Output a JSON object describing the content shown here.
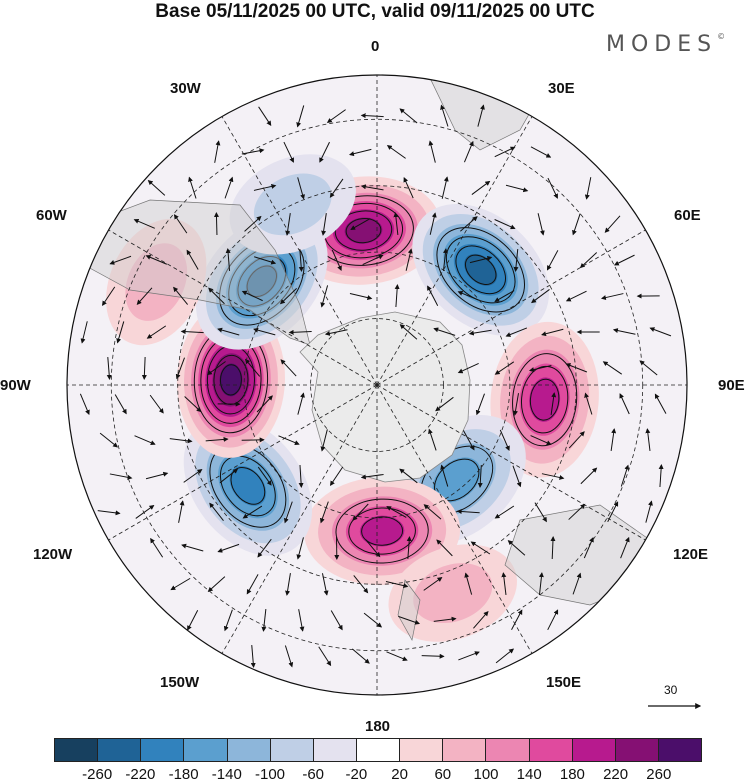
{
  "title": "Base 05/11/2025 00 UTC, valid 09/11/2025 00 UTC",
  "brand": "MODES",
  "brand_mark": "©",
  "longitude_labels": {
    "l0": "0",
    "l30e": "30E",
    "l60e": "60E",
    "l90e": "90E",
    "l120e": "120E",
    "l150e": "150E",
    "l180": "180",
    "l150w": "150W",
    "l120w": "120W",
    "l90w": "90W",
    "l60w": "60W",
    "l30w": "30W"
  },
  "reference_vector": "30",
  "colorbar": {
    "colors": [
      "#17405f",
      "#1f6396",
      "#3182bd",
      "#5b9fcf",
      "#8db6da",
      "#bfcfe6",
      "#e4e2ef",
      "#ffffff",
      "#f8d6d8",
      "#f3b3c3",
      "#ec86b2",
      "#e04a9e",
      "#b71a8e",
      "#851073",
      "#4b0e6a"
    ],
    "ticks": [
      "-260",
      "-220",
      "-180",
      "-140",
      "-100",
      "-60",
      "-20",
      "20",
      "60",
      "100",
      "140",
      "180",
      "220",
      "260"
    ]
  },
  "anomalies": [
    {
      "name": "anom-0-positive",
      "lon": -5,
      "lat": -55,
      "value": 250
    },
    {
      "name": "anom-40e-negative",
      "lon": 42,
      "lat": -55,
      "value": -255
    },
    {
      "name": "anom-90e-positive",
      "lon": 95,
      "lat": -52,
      "value": 210
    },
    {
      "name": "anom-140e-negative",
      "lon": 140,
      "lat": -62,
      "value": -150
    },
    {
      "name": "anom-180-positive",
      "lon": 178,
      "lat": -57,
      "value": 200
    },
    {
      "name": "anom-130w-negative",
      "lon": -128,
      "lat": -53,
      "value": -200
    },
    {
      "name": "anom-90w-positive",
      "lon": -88,
      "lat": -57,
      "value": 260
    },
    {
      "name": "anom-45w-negative",
      "lon": -48,
      "lat": -55,
      "value": -240
    },
    {
      "name": "anom-20w-negative",
      "lon": -25,
      "lat": -45,
      "value": -80
    },
    {
      "name": "anom-65w-positive",
      "lon": -65,
      "lat": -35,
      "value": 70
    },
    {
      "name": "anom-160e-positive",
      "lon": 160,
      "lat": -40,
      "value": 60
    }
  ],
  "colors": {
    "land": "#d9d9d9",
    "antarctica": "#ececec",
    "grid": "#222222",
    "contour": "#111111"
  }
}
